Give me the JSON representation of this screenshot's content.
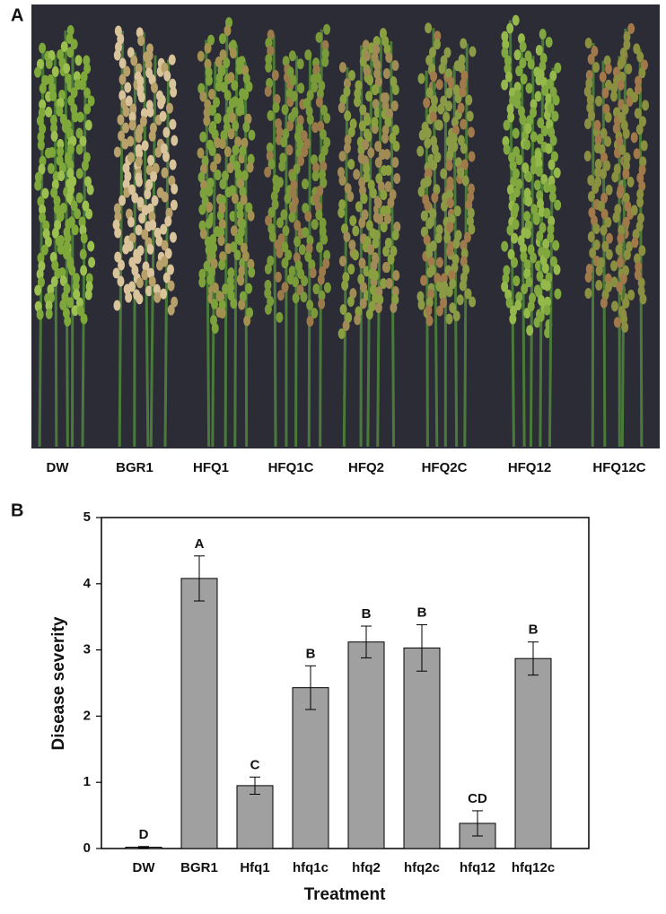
{
  "panel_a": {
    "label": "A",
    "labels": [
      "DW",
      "BGR1",
      "HFQ1",
      "HFQ1C",
      "HFQ2",
      "HFQ2C",
      "HFQ12",
      "HFQ12C"
    ]
  },
  "chart_data": {
    "type": "bar",
    "panel_label": "B",
    "categories": [
      "DW",
      "BGR1",
      "Hfq1",
      "hfq1c",
      "hfq2",
      "hfq2c",
      "hfq12",
      "hfq12c"
    ],
    "values": [
      0.02,
      4.08,
      0.95,
      2.43,
      3.12,
      3.03,
      0.38,
      2.87
    ],
    "errors": [
      0.01,
      0.34,
      0.13,
      0.33,
      0.24,
      0.35,
      0.19,
      0.25
    ],
    "letters": [
      "D",
      "A",
      "C",
      "B",
      "B",
      "B",
      "CD",
      "B"
    ],
    "color": "#a0a0a0",
    "ylim": [
      0,
      5
    ],
    "yticks": [
      0,
      1,
      2,
      3,
      4,
      5
    ],
    "ylabel": "Disease severity",
    "xlabel": "Treatment"
  }
}
